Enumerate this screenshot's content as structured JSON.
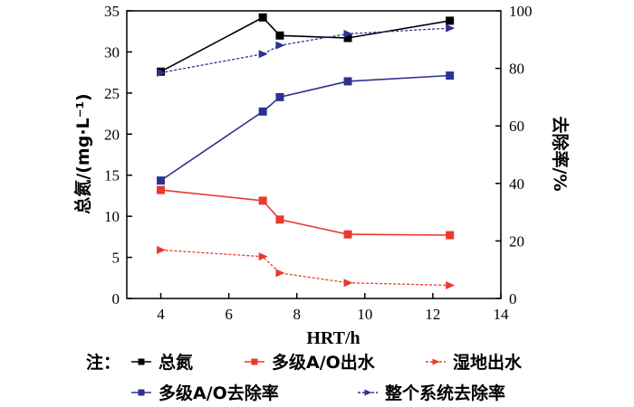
{
  "chart_data": {
    "type": "line",
    "xlabel": "HRT/h",
    "ylabel_left": "总氮/(mg·L⁻¹)",
    "ylabel_right": "去除率/%",
    "xlim": [
      3,
      14
    ],
    "xticks": [
      4,
      6,
      8,
      10,
      12,
      14
    ],
    "ylim_left": [
      0,
      35
    ],
    "yticks_left": [
      0,
      5,
      10,
      15,
      20,
      25,
      30,
      35
    ],
    "ylim_right": [
      0,
      100
    ],
    "yticks_right": [
      0,
      20,
      40,
      60,
      80,
      100
    ],
    "x": [
      4,
      7,
      7.5,
      9.5,
      12.5
    ],
    "legend_prefix": "注：",
    "legend_placement": "bottom",
    "grid": false,
    "series": [
      {
        "name": "总氮",
        "axis": "left",
        "color": "#000000",
        "marker": "square",
        "dash": "solid",
        "values": [
          27.6,
          34.2,
          32.0,
          31.7,
          33.8
        ]
      },
      {
        "name": "多级A/O出水",
        "axis": "left",
        "color": "#e8392f",
        "marker": "square",
        "dash": "solid",
        "values": [
          13.2,
          11.9,
          9.6,
          7.8,
          7.7
        ]
      },
      {
        "name": "湿地出水",
        "axis": "left",
        "color": "#e8392f",
        "marker": "triangle-right",
        "dash": "dashed",
        "values": [
          5.9,
          5.1,
          3.1,
          1.9,
          1.6
        ]
      },
      {
        "name": "多级A/O去除率",
        "axis": "right",
        "color": "#2e3192",
        "marker": "square",
        "dash": "solid",
        "values": [
          41.0,
          65.0,
          70.0,
          75.5,
          77.5
        ]
      },
      {
        "name": "整个系统去除率",
        "axis": "right",
        "color": "#2e3192",
        "marker": "triangle-right",
        "dash": "dashed",
        "values": [
          78.5,
          85.0,
          88.0,
          92.0,
          94.0
        ]
      }
    ]
  }
}
